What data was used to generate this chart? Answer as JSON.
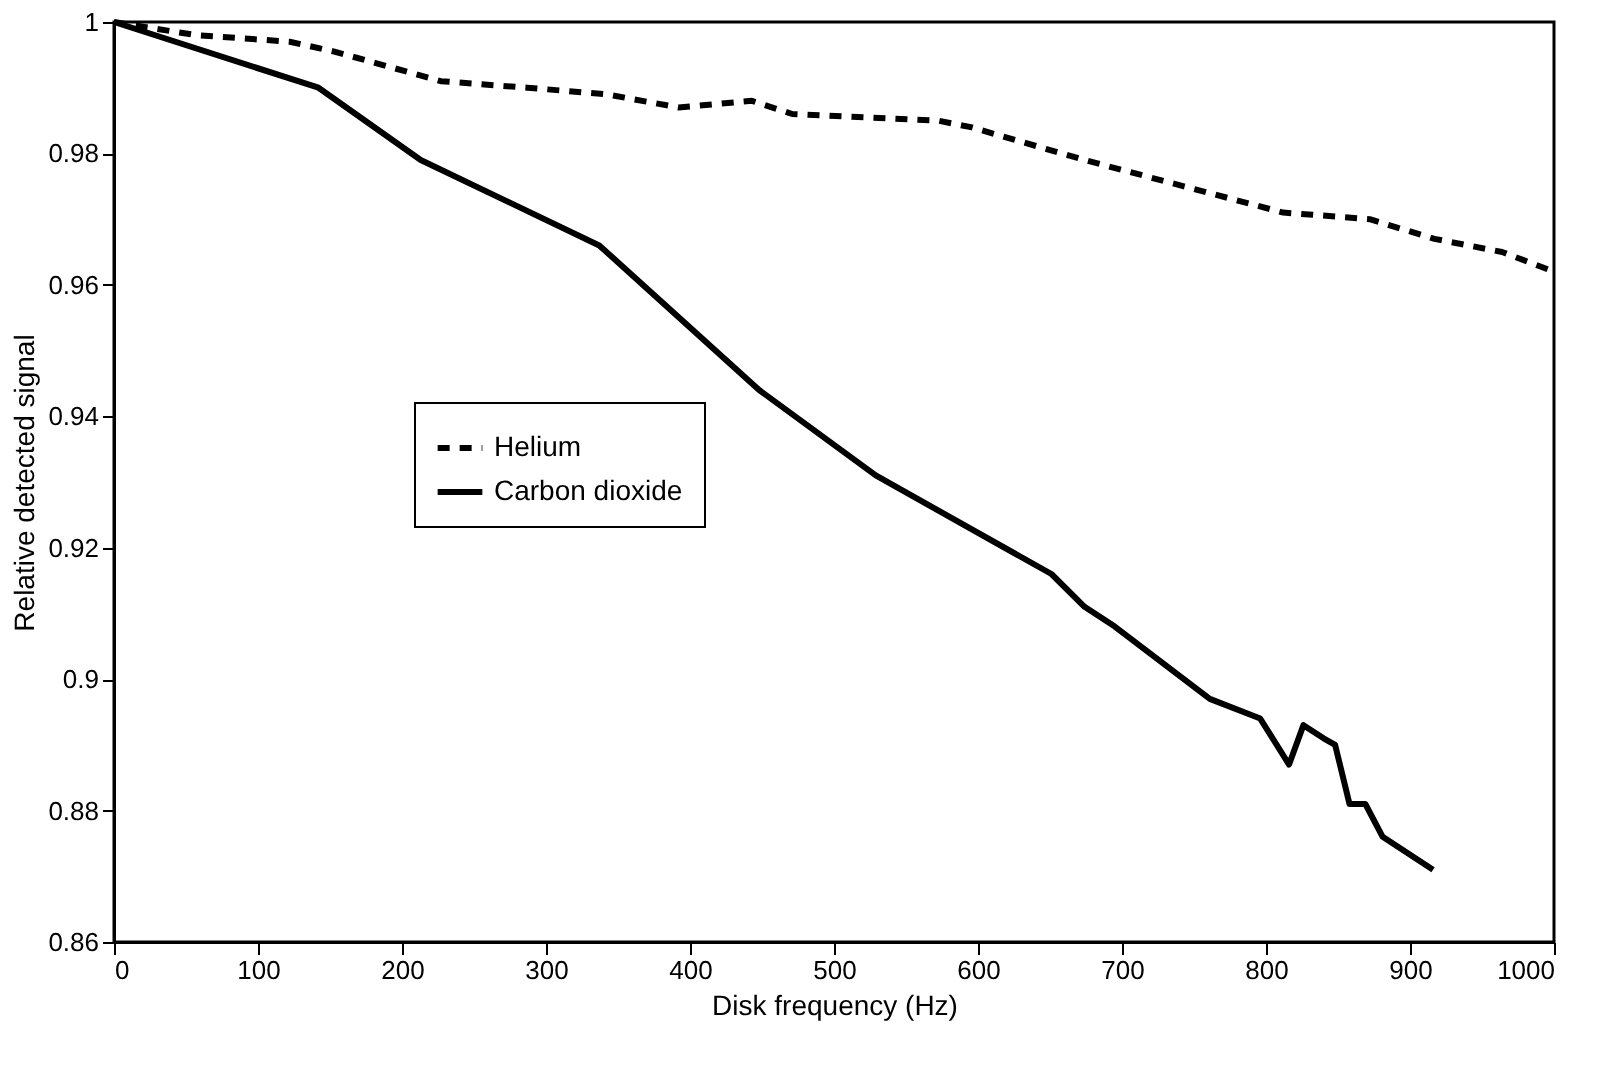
{
  "chart_data": {
    "type": "line",
    "xlabel": "Disk frequency (Hz)",
    "ylabel": "Relative detected signal",
    "xlim": [
      0,
      1000
    ],
    "xticks": [
      0,
      100,
      200,
      300,
      400,
      500,
      600,
      700,
      800,
      900,
      1000
    ],
    "ylim": [
      0.86,
      1
    ],
    "yticks": [
      0.86,
      0.88,
      0.9,
      0.92,
      0.94,
      0.96,
      0.98,
      1
    ],
    "grid": false,
    "legend": "left",
    "marker": "none",
    "series": [
      {
        "name": "Helium",
        "color": "#000000",
        "line_style": "dashed",
        "x": [
          0,
          57,
          122,
          153,
          227,
          287,
          342,
          392,
          443,
          471,
          572,
          595,
          674,
          743,
          812,
          872,
          917,
          964,
          1000
        ],
        "values": [
          1,
          0.998,
          0.997,
          0.9955,
          0.991,
          0.99,
          0.989,
          0.987,
          0.988,
          0.986,
          0.985,
          0.984,
          0.979,
          0.975,
          0.971,
          0.97,
          0.967,
          0.965,
          0.962
        ]
      },
      {
        "name": "Carbon dioxide",
        "color": "#000000",
        "line_style": "solid",
        "x": [
          0,
          142,
          213,
          337,
          448,
          529,
          651,
          674,
          695,
          761,
          796,
          816,
          826,
          840,
          848,
          858,
          869,
          881,
          916
        ],
        "values": [
          1,
          0.99,
          0.979,
          0.966,
          0.944,
          0.931,
          0.916,
          0.911,
          0.908,
          0.897,
          0.894,
          0.887,
          0.893,
          0.891,
          0.89,
          0.881,
          0.881,
          0.876,
          0.871
        ]
      }
    ]
  }
}
